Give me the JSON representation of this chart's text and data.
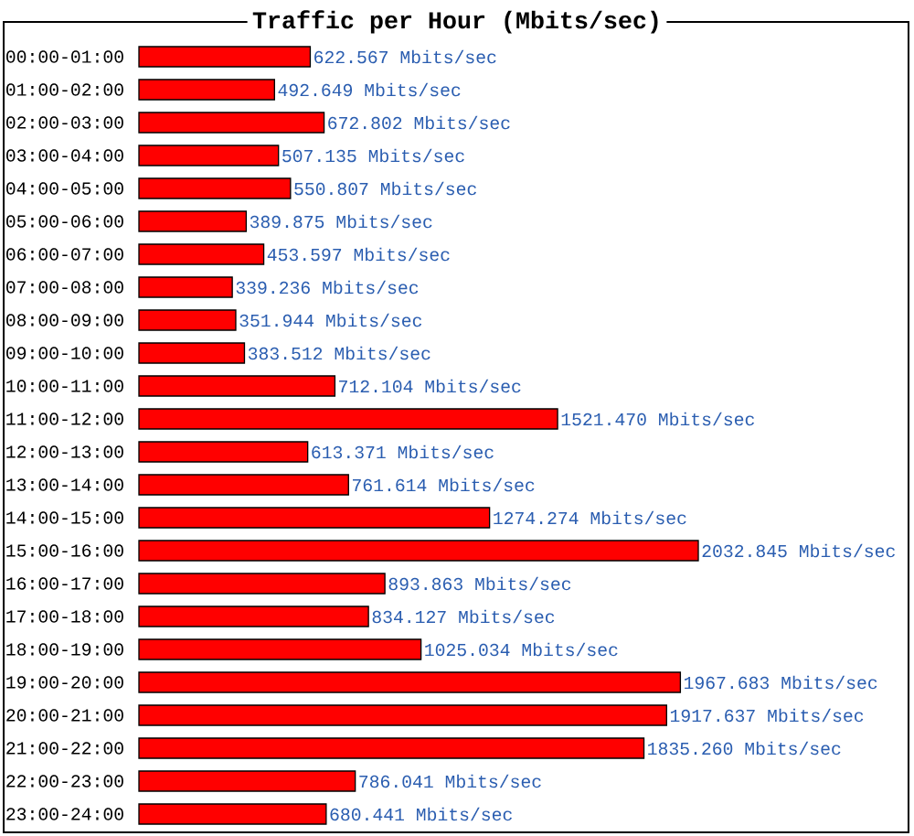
{
  "chart_data": {
    "type": "bar",
    "orientation": "horizontal",
    "title": "Traffic per Hour (Mbits/sec)",
    "color": "#ff0000",
    "categories": [
      "00:00-01:00",
      "01:00-02:00",
      "02:00-03:00",
      "03:00-04:00",
      "04:00-05:00",
      "05:00-06:00",
      "06:00-07:00",
      "07:00-08:00",
      "08:00-09:00",
      "09:00-10:00",
      "10:00-11:00",
      "11:00-12:00",
      "12:00-13:00",
      "13:00-14:00",
      "14:00-15:00",
      "15:00-16:00",
      "16:00-17:00",
      "17:00-18:00",
      "18:00-19:00",
      "19:00-20:00",
      "20:00-21:00",
      "21:00-22:00",
      "22:00-23:00",
      "23:00-24:00"
    ],
    "values": [
      622.567,
      492.649,
      672.802,
      507.135,
      550.807,
      389.875,
      453.597,
      339.236,
      351.944,
      383.512,
      712.104,
      1521.47,
      613.371,
      761.614,
      1274.274,
      2032.845,
      893.863,
      834.127,
      1025.034,
      1967.683,
      1917.637,
      1835.26,
      786.041,
      680.441
    ],
    "value_labels": [
      "622.567 Mbits/sec",
      "492.649 Mbits/sec",
      "672.802 Mbits/sec",
      "507.135 Mbits/sec",
      "550.807 Mbits/sec",
      "389.875 Mbits/sec",
      "453.597 Mbits/sec",
      "339.236 Mbits/sec",
      "351.944 Mbits/sec",
      "383.512 Mbits/sec",
      "712.104 Mbits/sec",
      "1521.470 Mbits/sec",
      "613.371 Mbits/sec",
      "761.614 Mbits/sec",
      "1274.274 Mbits/sec",
      "2032.845 Mbits/sec",
      "893.863 Mbits/sec",
      "834.127 Mbits/sec",
      "1025.034 Mbits/sec",
      "1967.683 Mbits/sec",
      "1917.637 Mbits/sec",
      "1835.260 Mbits/sec",
      "786.041 Mbits/sec",
      "680.441 Mbits/sec"
    ]
  }
}
